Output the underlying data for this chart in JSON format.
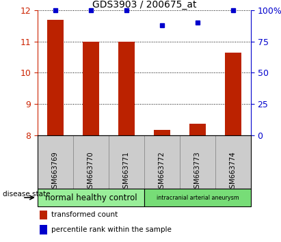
{
  "title": "GDS3903 / 200675_at",
  "samples": [
    "GSM663769",
    "GSM663770",
    "GSM663771",
    "GSM663772",
    "GSM663773",
    "GSM663774"
  ],
  "transformed_counts": [
    11.7,
    11.0,
    11.0,
    8.18,
    8.38,
    10.65
  ],
  "percentile_ranks": [
    100,
    100,
    100,
    88,
    90,
    100
  ],
  "ylim_left": [
    8,
    12
  ],
  "ylim_right": [
    0,
    100
  ],
  "yticks_left": [
    8,
    9,
    10,
    11,
    12
  ],
  "yticks_right": [
    0,
    25,
    50,
    75,
    100
  ],
  "bar_color": "#bb2200",
  "dot_color": "#0000cc",
  "groups": [
    {
      "label": "normal healthy control",
      "color": "#99ee99",
      "start": 0,
      "end": 3
    },
    {
      "label": "intracranial arterial aneurysm",
      "color": "#77dd77",
      "start": 3,
      "end": 6
    }
  ],
  "sample_box_color": "#cccccc",
  "disease_state_label": "disease state",
  "legend_bar_label": "transformed count",
  "legend_dot_label": "percentile rank within the sample",
  "background_color": "#ffffff",
  "left_tick_color": "#cc2200",
  "right_tick_color": "#0000cc"
}
